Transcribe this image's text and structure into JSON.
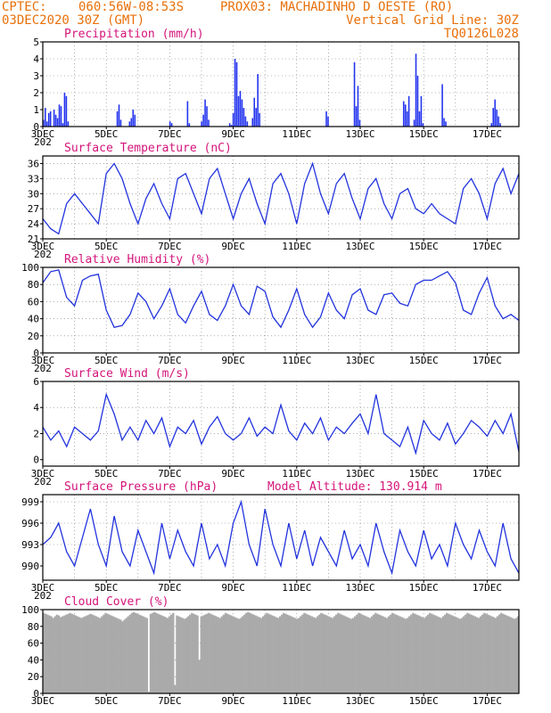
{
  "header": {
    "left_line1": "CPTEC:",
    "coords": "060:56W-08:53S",
    "station": "PROX03: MACHADINHO D OESTE (RO)",
    "run_date": "03DEC2020 30Z (GMT)",
    "grid_note": "Vertical Grid Line: 30Z",
    "model_id": "TQ0126L028"
  },
  "x_axis": {
    "labels": [
      "3DEC",
      "5DEC",
      "7DEC",
      "9DEC",
      "11DEC",
      "13DEC",
      "15DEC",
      "17DEC"
    ],
    "year_stub": "202"
  },
  "colors": {
    "line": "#2233dd",
    "bar": "#2233ee",
    "cloud": "#aaaaaa",
    "title": "#d4147a",
    "header": "#e8700a"
  },
  "chart_data": [
    {
      "type": "bar",
      "title": "Precipitation (mm/h)",
      "ylim": [
        0,
        5
      ],
      "yticks": [
        "0",
        "1",
        "2",
        "3",
        "4",
        "5"
      ],
      "days": [
        3,
        18
      ],
      "values": [
        0.4,
        1.1,
        0.3,
        0.8,
        0.9,
        0,
        1.0,
        0.7,
        0.5,
        1.3,
        1.2,
        0.2,
        2.0,
        1.8,
        0.3,
        0,
        0,
        0,
        0,
        0,
        0,
        0,
        0,
        0,
        0,
        0,
        0,
        0,
        0,
        0,
        0,
        0,
        0,
        0,
        0,
        0,
        0,
        0,
        0,
        0,
        0,
        0,
        0.9,
        1.3,
        0.4,
        0,
        0,
        0,
        0,
        0.3,
        0.5,
        1.0,
        0.7,
        0,
        0,
        0,
        0,
        0,
        0,
        0,
        0,
        0,
        0,
        0,
        0,
        0,
        0,
        0,
        0,
        0,
        0,
        0,
        0.3,
        0.2,
        0,
        0,
        0,
        0,
        0,
        0,
        0,
        0,
        1.5,
        0.2,
        0,
        0,
        0,
        0,
        0,
        0,
        0.3,
        0.7,
        1.6,
        1.2,
        0.4,
        0,
        0,
        0,
        0,
        0,
        0,
        0,
        0,
        0,
        0,
        0,
        0.2,
        0.1,
        0.8,
        4.0,
        3.8,
        1.8,
        2.1,
        1.6,
        1.1,
        0.6,
        0.3,
        0,
        0,
        0.5,
        1.7,
        1.1,
        3.1,
        0.8,
        0,
        0,
        0,
        0,
        0,
        0,
        0,
        0,
        0,
        0,
        0,
        0,
        0,
        0,
        0,
        0,
        0,
        0,
        0,
        0,
        0,
        0,
        0,
        0,
        0,
        0,
        0,
        0,
        0,
        0,
        0,
        0,
        0,
        0,
        0,
        0,
        0,
        0.9,
        0.6,
        0,
        0,
        0,
        0,
        0,
        0,
        0,
        0,
        0,
        0,
        0,
        0,
        0,
        0,
        3.8,
        1.2,
        2.4,
        0.4,
        0,
        0,
        0,
        0,
        0,
        0,
        0,
        0,
        0,
        0,
        0,
        0,
        0,
        0,
        0,
        0,
        0,
        0,
        0,
        0,
        0,
        0,
        0,
        0,
        1.5,
        1.3,
        0.9,
        1.8,
        0,
        0,
        0.4,
        4.3,
        3.0,
        0.9,
        1.8,
        0.2,
        0,
        0,
        0,
        0,
        0,
        0,
        0,
        0,
        0,
        0,
        2.5,
        0.5,
        0.3,
        0,
        0,
        0,
        0,
        0,
        0,
        0,
        0,
        0,
        0,
        0,
        0,
        0,
        0,
        0,
        0,
        0,
        0,
        0,
        0,
        0,
        0,
        0,
        0,
        0,
        0.2,
        1.1,
        1.6,
        1.0,
        0.6,
        0.2,
        0,
        0,
        0,
        0,
        0,
        0,
        0,
        0,
        0,
        0
      ]
    },
    {
      "type": "line",
      "title": "Surface Temperature (nC)",
      "ylim": [
        21,
        37.5
      ],
      "yticks": [
        "21",
        "24",
        "27",
        "30",
        "33",
        "36"
      ],
      "x": [
        3.0,
        3.25,
        3.5,
        3.75,
        4.0,
        4.25,
        4.5,
        4.75,
        5.0,
        5.25,
        5.5,
        5.75,
        6.0,
        6.25,
        6.5,
        6.75,
        7.0,
        7.25,
        7.5,
        7.75,
        8.0,
        8.25,
        8.5,
        8.75,
        9.0,
        9.25,
        9.5,
        9.75,
        10.0,
        10.25,
        10.5,
        10.75,
        11.0,
        11.25,
        11.5,
        11.75,
        12.0,
        12.25,
        12.5,
        12.75,
        13.0,
        13.25,
        13.5,
        13.75,
        14.0,
        14.25,
        14.5,
        14.75,
        15.0,
        15.25,
        15.5,
        15.75,
        16.0,
        16.25,
        16.5,
        16.75,
        17.0,
        17.25,
        17.5,
        17.75,
        18.0
      ],
      "y": [
        25,
        23,
        22,
        28,
        30,
        28,
        26,
        24,
        34,
        36,
        33,
        28,
        24,
        29,
        32,
        28,
        25,
        33,
        34,
        30,
        26,
        33,
        35,
        30,
        25,
        30,
        33,
        28,
        24,
        32,
        34,
        30,
        24,
        32,
        36,
        30,
        26,
        32,
        34,
        29,
        25,
        31,
        33,
        28,
        25,
        30,
        31,
        27,
        26,
        28,
        26,
        25,
        24,
        31,
        33,
        30,
        25,
        32,
        35,
        30,
        34
      ]
    },
    {
      "type": "line",
      "title": "Relative Humidity (%)",
      "ylim": [
        0,
        100
      ],
      "yticks": [
        "0",
        "20",
        "40",
        "60",
        "80",
        "100"
      ],
      "x": [
        3.0,
        3.25,
        3.5,
        3.75,
        4.0,
        4.25,
        4.5,
        4.75,
        5.0,
        5.25,
        5.5,
        5.75,
        6.0,
        6.25,
        6.5,
        6.75,
        7.0,
        7.25,
        7.5,
        7.75,
        8.0,
        8.25,
        8.5,
        8.75,
        9.0,
        9.25,
        9.5,
        9.75,
        10.0,
        10.25,
        10.5,
        10.75,
        11.0,
        11.25,
        11.5,
        11.75,
        12.0,
        12.25,
        12.5,
        12.75,
        13.0,
        13.25,
        13.5,
        13.75,
        14.0,
        14.25,
        14.5,
        14.75,
        15.0,
        15.25,
        15.5,
        15.75,
        16.0,
        16.25,
        16.5,
        16.75,
        17.0,
        17.25,
        17.5,
        17.75,
        18.0
      ],
      "y": [
        82,
        95,
        97,
        65,
        55,
        85,
        90,
        92,
        50,
        30,
        32,
        45,
        70,
        60,
        40,
        55,
        75,
        45,
        35,
        55,
        72,
        45,
        38,
        55,
        80,
        55,
        45,
        78,
        72,
        42,
        30,
        50,
        75,
        45,
        30,
        42,
        70,
        50,
        40,
        68,
        75,
        50,
        45,
        68,
        70,
        58,
        55,
        80,
        85,
        85,
        90,
        95,
        82,
        50,
        45,
        70,
        88,
        55,
        40,
        45,
        38
      ]
    },
    {
      "type": "line",
      "title": "Surface Wind (m/s)",
      "ylim": [
        -0.5,
        6
      ],
      "yticks": [
        "0",
        "2",
        "4",
        "6"
      ],
      "x": [
        3.0,
        3.25,
        3.5,
        3.75,
        4.0,
        4.25,
        4.5,
        4.75,
        5.0,
        5.25,
        5.5,
        5.75,
        6.0,
        6.25,
        6.5,
        6.75,
        7.0,
        7.25,
        7.5,
        7.75,
        8.0,
        8.25,
        8.5,
        8.75,
        9.0,
        9.25,
        9.5,
        9.75,
        10.0,
        10.25,
        10.5,
        10.75,
        11.0,
        11.25,
        11.5,
        11.75,
        12.0,
        12.25,
        12.5,
        12.75,
        13.0,
        13.25,
        13.5,
        13.75,
        14.0,
        14.25,
        14.5,
        14.75,
        15.0,
        15.25,
        15.5,
        15.75,
        16.0,
        16.25,
        16.5,
        16.75,
        17.0,
        17.25,
        17.5,
        17.75,
        18.0
      ],
      "y": [
        2.5,
        1.5,
        2.2,
        1.0,
        2.5,
        2.0,
        1.5,
        2.2,
        5.0,
        3.5,
        1.5,
        2.5,
        1.5,
        3.0,
        2.0,
        3.2,
        1.0,
        2.5,
        2.0,
        3.0,
        1.2,
        2.5,
        3.3,
        2.0,
        1.5,
        2.0,
        3.2,
        1.8,
        2.5,
        2.0,
        4.2,
        2.2,
        1.5,
        2.8,
        2.0,
        3.2,
        1.5,
        2.5,
        2.0,
        2.8,
        3.5,
        2.0,
        5.0,
        2.0,
        1.5,
        1.0,
        2.5,
        0.5,
        3.0,
        2.0,
        1.5,
        2.8,
        1.2,
        2.0,
        3.0,
        2.5,
        1.8,
        3.0,
        2.0,
        3.5,
        0.6
      ]
    },
    {
      "type": "line",
      "title": "Surface Pressure (hPa)",
      "note": "Model Altitude: 130.914 m",
      "ylim": [
        988,
        1000
      ],
      "yticks": [
        "990",
        "993",
        "996",
        "999"
      ],
      "x": [
        3.0,
        3.25,
        3.5,
        3.75,
        4.0,
        4.25,
        4.5,
        4.75,
        5.0,
        5.25,
        5.5,
        5.75,
        6.0,
        6.25,
        6.5,
        6.75,
        7.0,
        7.25,
        7.5,
        7.75,
        8.0,
        8.25,
        8.5,
        8.75,
        9.0,
        9.25,
        9.5,
        9.75,
        10.0,
        10.25,
        10.5,
        10.75,
        11.0,
        11.25,
        11.5,
        11.75,
        12.0,
        12.25,
        12.5,
        12.75,
        13.0,
        13.25,
        13.5,
        13.75,
        14.0,
        14.25,
        14.5,
        14.75,
        15.0,
        15.25,
        15.5,
        15.75,
        16.0,
        16.25,
        16.5,
        16.75,
        17.0,
        17.25,
        17.5,
        17.75,
        18.0
      ],
      "y": [
        993,
        994,
        996,
        992,
        990,
        994,
        998,
        993,
        990,
        997,
        992,
        990,
        995,
        992,
        989,
        996,
        991,
        995,
        992,
        990,
        996,
        991,
        993,
        990,
        996,
        999,
        993,
        990,
        998,
        993,
        990,
        996,
        991,
        995,
        990,
        994,
        992,
        990,
        995,
        991,
        993,
        990,
        996,
        992,
        989,
        995,
        992,
        990,
        995,
        991,
        993,
        990,
        996,
        993,
        991,
        995,
        992,
        990,
        996,
        991,
        989
      ]
    },
    {
      "type": "area",
      "title": "Cloud Cover (%)",
      "ylim": [
        0,
        100
      ],
      "yticks": [
        "0",
        "20",
        "40",
        "60",
        "80",
        "100"
      ],
      "days": [
        3,
        18
      ],
      "values": [
        96,
        95,
        94,
        93,
        92,
        90,
        92,
        94,
        93,
        91,
        92,
        93,
        94,
        95,
        96,
        95,
        94,
        93,
        92,
        91,
        90,
        91,
        92,
        93,
        94,
        95,
        94,
        93,
        92,
        91,
        90,
        92,
        94,
        96,
        95,
        94,
        93,
        92,
        91,
        90,
        89,
        88,
        86,
        88,
        90,
        92,
        94,
        96,
        97,
        96,
        95,
        94,
        93,
        92,
        91,
        90,
        2,
        95,
        96,
        97,
        96,
        95,
        94,
        93,
        92,
        91,
        90,
        92,
        94,
        96,
        10,
        93,
        92,
        91,
        90,
        89,
        90,
        92,
        94,
        96,
        95,
        94,
        93,
        40,
        92,
        93,
        94,
        95,
        96,
        95,
        94,
        93,
        92,
        91,
        90,
        92,
        94,
        96,
        95,
        94,
        93,
        92,
        91,
        90,
        89,
        90,
        92,
        94,
        96,
        97,
        96,
        95,
        94,
        93,
        92,
        91,
        90,
        92,
        94,
        96,
        95,
        94,
        93,
        92,
        91,
        90,
        92,
        94,
        96,
        95,
        94,
        93,
        92,
        91,
        90,
        89,
        90,
        92,
        94,
        96,
        95,
        94,
        93,
        92,
        91,
        90,
        92,
        94,
        96,
        95,
        94,
        93,
        92,
        91,
        90,
        92,
        94,
        96,
        95,
        94,
        93,
        92,
        91,
        90,
        89,
        90,
        92,
        94,
        96,
        95,
        94,
        93,
        92,
        91,
        90,
        92,
        94,
        96,
        95,
        94,
        93,
        92,
        91,
        90,
        92,
        94,
        96,
        95,
        94,
        93,
        92,
        91,
        90,
        89,
        90,
        92,
        94,
        96,
        95,
        94,
        93,
        92,
        91,
        90,
        92,
        94,
        96,
        95,
        94,
        93,
        92,
        91,
        90,
        92,
        94,
        96,
        95,
        94,
        93,
        92,
        91,
        90,
        89,
        90,
        92,
        94,
        96,
        95,
        94,
        93,
        92,
        91,
        90,
        92,
        94,
        96,
        95,
        94,
        93,
        92,
        91,
        90,
        92,
        94,
        96,
        95,
        94,
        93,
        92,
        91,
        90,
        89,
        90,
        92
      ]
    }
  ]
}
